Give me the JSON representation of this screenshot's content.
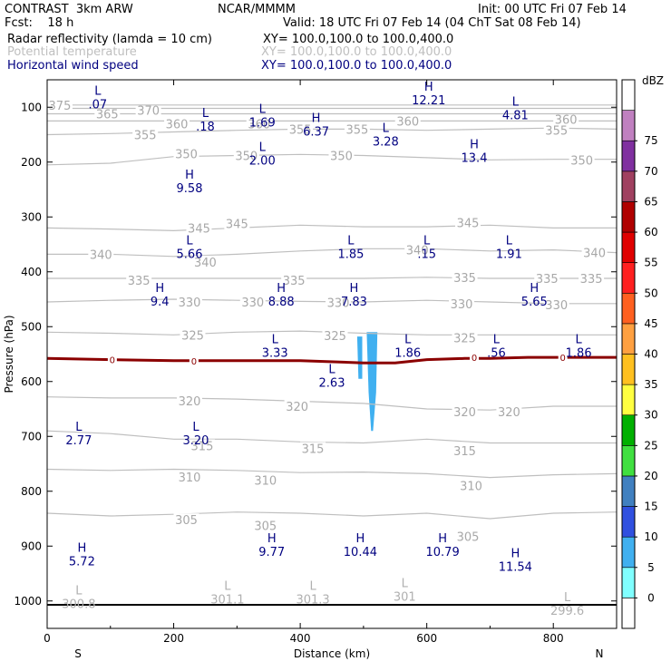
{
  "header": {
    "model": "CONTRAST  3km ARW",
    "org": "NCAR/MMMM",
    "init": "Init: 00 UTC Fri 07 Feb 14",
    "fcst": "Fcst:    18 h",
    "valid": "Valid: 18 UTC Fri 07 Feb 14 (04 ChT Sat 08 Feb 14)",
    "fields": [
      {
        "label": "Radar reflectivity (lamda = 10 cm)",
        "xy": "XY= 100.0,100.0 to 100.0,400.0",
        "color": "#000000"
      },
      {
        "label": "Potential temperature",
        "xy": "XY= 100.0,100.0 to 100.0,400.0",
        "color": "#bfbfbf"
      },
      {
        "label": "Horizontal wind speed",
        "xy": "XY= 100.0,100.0 to 100.0,400.0",
        "color": "#000080"
      }
    ]
  },
  "chart_data": {
    "type": "cross-section",
    "xlabel": "Distance (km)",
    "ylabel": "Pressure (hPa)",
    "xlim": [
      0,
      900
    ],
    "ylim": [
      1050,
      50
    ],
    "xticks": [
      0,
      200,
      400,
      600,
      800
    ],
    "yticks": [
      100,
      200,
      300,
      400,
      500,
      600,
      700,
      800,
      900,
      1000
    ],
    "x_end_labels": {
      "left": "S",
      "right": "N"
    },
    "colorbar": {
      "unit": "dBZ",
      "ticks": [
        0,
        5,
        10,
        15,
        20,
        25,
        30,
        35,
        40,
        45,
        50,
        55,
        60,
        65,
        70,
        75
      ],
      "colors": [
        "#ffffff",
        "#80ffff",
        "#40b0f0",
        "#3050e0",
        "#4080c0",
        "#40e040",
        "#00b000",
        "#ffff40",
        "#ffc020",
        "#ffa040",
        "#ff6020",
        "#ff2020",
        "#e00000",
        "#b00000",
        "#a04060",
        "#8030a0",
        "#c080c0",
        "#ffffff"
      ]
    },
    "theta_contours": [
      {
        "value": 305,
        "points": [
          [
            0,
            840
          ],
          [
            100,
            845
          ],
          [
            200,
            842
          ],
          [
            300,
            838
          ],
          [
            400,
            840
          ],
          [
            500,
            845
          ],
          [
            600,
            840
          ],
          [
            700,
            850
          ],
          [
            800,
            840
          ],
          [
            900,
            838
          ]
        ],
        "labels": [
          [
            220,
            852
          ],
          [
            345,
            862
          ],
          [
            665,
            882
          ]
        ]
      },
      {
        "value": 310,
        "points": [
          [
            0,
            760
          ],
          [
            100,
            762
          ],
          [
            200,
            760
          ],
          [
            300,
            762
          ],
          [
            400,
            766
          ],
          [
            500,
            765
          ],
          [
            600,
            768
          ],
          [
            700,
            775
          ],
          [
            800,
            770
          ],
          [
            900,
            768
          ]
        ],
        "labels": [
          [
            225,
            774
          ],
          [
            345,
            780
          ],
          [
            670,
            790
          ]
        ]
      },
      {
        "value": 315,
        "points": [
          [
            0,
            690
          ],
          [
            100,
            695
          ],
          [
            200,
            705
          ],
          [
            300,
            705
          ],
          [
            400,
            710
          ],
          [
            500,
            712
          ],
          [
            600,
            705
          ],
          [
            700,
            712
          ],
          [
            800,
            712
          ],
          [
            900,
            712
          ]
        ],
        "labels": [
          [
            245,
            717
          ],
          [
            420,
            722
          ],
          [
            660,
            726
          ]
        ]
      },
      {
        "value": 320,
        "points": [
          [
            0,
            628
          ],
          [
            100,
            630
          ],
          [
            200,
            630
          ],
          [
            300,
            632
          ],
          [
            400,
            636
          ],
          [
            500,
            640
          ],
          [
            600,
            650
          ],
          [
            700,
            652
          ],
          [
            800,
            645
          ],
          [
            900,
            645
          ]
        ],
        "labels": [
          [
            225,
            635
          ],
          [
            395,
            645
          ],
          [
            660,
            655
          ],
          [
            730,
            655
          ]
        ]
      },
      {
        "value": 325,
        "points": [
          [
            0,
            510
          ],
          [
            100,
            512
          ],
          [
            200,
            515
          ],
          [
            300,
            510
          ],
          [
            400,
            508
          ],
          [
            500,
            512
          ],
          [
            600,
            515
          ],
          [
            700,
            515
          ],
          [
            800,
            515
          ],
          [
            900,
            515
          ]
        ],
        "labels": [
          [
            230,
            515
          ],
          [
            455,
            516
          ],
          [
            660,
            520
          ]
        ]
      },
      {
        "value": 330,
        "points": [
          [
            0,
            455
          ],
          [
            100,
            452
          ],
          [
            200,
            450
          ],
          [
            300,
            452
          ],
          [
            400,
            454
          ],
          [
            500,
            455
          ],
          [
            600,
            452
          ],
          [
            700,
            455
          ],
          [
            800,
            458
          ],
          [
            900,
            458
          ]
        ],
        "labels": [
          [
            225,
            455
          ],
          [
            325,
            455
          ],
          [
            460,
            456
          ],
          [
            655,
            458
          ],
          [
            805,
            460
          ]
        ]
      },
      {
        "value": 335,
        "points": [
          [
            0,
            412
          ],
          [
            100,
            412
          ],
          [
            200,
            412
          ],
          [
            300,
            412
          ],
          [
            400,
            412
          ],
          [
            500,
            412
          ],
          [
            600,
            410
          ],
          [
            700,
            412
          ],
          [
            800,
            412
          ],
          [
            900,
            412
          ]
        ],
        "labels": [
          [
            145,
            415
          ],
          [
            390,
            415
          ],
          [
            660,
            410
          ],
          [
            790,
            412
          ],
          [
            860,
            412
          ]
        ]
      },
      {
        "value": 340,
        "points": [
          [
            0,
            368
          ],
          [
            100,
            368
          ],
          [
            200,
            372
          ],
          [
            300,
            368
          ],
          [
            400,
            362
          ],
          [
            500,
            358
          ],
          [
            600,
            358
          ],
          [
            700,
            362
          ],
          [
            800,
            360
          ],
          [
            900,
            365
          ]
        ],
        "labels": [
          [
            85,
            368
          ],
          [
            250,
            382
          ],
          [
            585,
            360
          ],
          [
            865,
            365
          ]
        ]
      },
      {
        "value": 345,
        "points": [
          [
            0,
            320
          ],
          [
            100,
            322
          ],
          [
            200,
            325
          ],
          [
            300,
            320
          ],
          [
            400,
            315
          ],
          [
            500,
            318
          ],
          [
            600,
            318
          ],
          [
            700,
            315
          ],
          [
            800,
            320
          ],
          [
            900,
            320
          ]
        ],
        "labels": [
          [
            240,
            320
          ],
          [
            300,
            312
          ],
          [
            665,
            310
          ]
        ]
      },
      {
        "value": 350,
        "points": [
          [
            0,
            205
          ],
          [
            100,
            202
          ],
          [
            200,
            190
          ],
          [
            300,
            188
          ],
          [
            400,
            186
          ],
          [
            500,
            188
          ],
          [
            600,
            192
          ],
          [
            700,
            196
          ],
          [
            800,
            195
          ],
          [
            900,
            195
          ]
        ],
        "labels": [
          [
            220,
            185
          ],
          [
            315,
            188
          ],
          [
            465,
            188
          ],
          [
            845,
            196
          ]
        ]
      },
      {
        "value": 355,
        "points": [
          [
            0,
            150
          ],
          [
            100,
            148
          ],
          [
            200,
            145
          ],
          [
            300,
            142
          ],
          [
            400,
            140
          ],
          [
            500,
            140
          ],
          [
            600,
            142
          ],
          [
            700,
            140
          ],
          [
            800,
            138
          ],
          [
            900,
            140
          ]
        ],
        "labels": [
          [
            155,
            150
          ],
          [
            400,
            140
          ],
          [
            490,
            140
          ],
          [
            805,
            142
          ]
        ]
      },
      {
        "value": 360,
        "points": [
          [
            0,
            125
          ],
          [
            100,
            125
          ],
          [
            200,
            125
          ],
          [
            300,
            125
          ],
          [
            400,
            125
          ],
          [
            500,
            125
          ],
          [
            600,
            125
          ],
          [
            700,
            125
          ],
          [
            800,
            125
          ],
          [
            900,
            125
          ]
        ],
        "labels": [
          [
            205,
            130
          ],
          [
            335,
            130
          ],
          [
            570,
            125
          ],
          [
            820,
            122
          ]
        ]
      },
      {
        "value": 365,
        "points": [
          [
            0,
            112
          ],
          [
            300,
            112
          ],
          [
            600,
            112
          ],
          [
            900,
            112
          ]
        ],
        "labels": [
          [
            95,
            112
          ]
        ]
      },
      {
        "value": 370,
        "points": [
          [
            0,
            102
          ],
          [
            300,
            102
          ],
          [
            600,
            102
          ],
          [
            900,
            102
          ]
        ],
        "labels": [
          [
            160,
            105
          ]
        ]
      },
      {
        "value": 375,
        "points": [
          [
            0,
            96
          ],
          [
            300,
            96
          ],
          [
            600,
            96
          ],
          [
            900,
            96
          ]
        ],
        "labels": [
          [
            20,
            96
          ]
        ]
      }
    ],
    "zero_line": {
      "points": [
        [
          0,
          558
        ],
        [
          100,
          560
        ],
        [
          200,
          562
        ],
        [
          300,
          562
        ],
        [
          400,
          562
        ],
        [
          500,
          566
        ],
        [
          550,
          566
        ],
        [
          600,
          560
        ],
        [
          660,
          558
        ],
        [
          700,
          558
        ],
        [
          760,
          556
        ],
        [
          900,
          556
        ]
      ],
      "labels": [
        [
          103,
          560
        ],
        [
          232,
          562
        ],
        [
          675,
          556
        ],
        [
          815,
          556
        ]
      ],
      "label_text": "0",
      "color": "#8b0000"
    },
    "reflectivity_cells": [
      {
        "dbz": 5,
        "points": [
          [
            490,
            518
          ],
          [
            498,
            518
          ],
          [
            498,
            595
          ],
          [
            492,
            595
          ]
        ]
      },
      {
        "dbz": 5,
        "points": [
          [
            505,
            510
          ],
          [
            522,
            510
          ],
          [
            520,
            620
          ],
          [
            515,
            690
          ],
          [
            512,
            690
          ],
          [
            508,
            620
          ]
        ]
      }
    ],
    "extrema": [
      {
        "kind": "L",
        "x": 80,
        "p": 77,
        "value": ".07"
      },
      {
        "kind": "L",
        "x": 250,
        "p": 118,
        "value": ".18"
      },
      {
        "kind": "L",
        "x": 340,
        "p": 110,
        "value": "1.69"
      },
      {
        "kind": "H",
        "x": 425,
        "p": 127,
        "value": "6.37"
      },
      {
        "kind": "L",
        "x": 535,
        "p": 145,
        "value": "3.28"
      },
      {
        "kind": "H",
        "x": 603,
        "p": 70,
        "value": "12.21"
      },
      {
        "kind": "L",
        "x": 740,
        "p": 97,
        "value": "4.81"
      },
      {
        "kind": "L",
        "x": 340,
        "p": 180,
        "value": "2.00"
      },
      {
        "kind": "H",
        "x": 675,
        "p": 175,
        "value": "13.4"
      },
      {
        "kind": "H",
        "x": 225,
        "p": 230,
        "value": "9.58"
      },
      {
        "kind": "L",
        "x": 225,
        "p": 350,
        "value": "5.66"
      },
      {
        "kind": "L",
        "x": 480,
        "p": 350,
        "value": "1.85"
      },
      {
        "kind": "L",
        "x": 600,
        "p": 350,
        "value": ".15"
      },
      {
        "kind": "L",
        "x": 730,
        "p": 350,
        "value": "1.91"
      },
      {
        "kind": "H",
        "x": 178,
        "p": 437,
        "value": "9.4"
      },
      {
        "kind": "H",
        "x": 370,
        "p": 437,
        "value": "8.88"
      },
      {
        "kind": "H",
        "x": 485,
        "p": 437,
        "value": "7.83"
      },
      {
        "kind": "H",
        "x": 770,
        "p": 437,
        "value": "5.65"
      },
      {
        "kind": "L",
        "x": 360,
        "p": 530,
        "value": "3.33"
      },
      {
        "kind": "L",
        "x": 570,
        "p": 530,
        "value": "1.86"
      },
      {
        "kind": "L",
        "x": 710,
        "p": 530,
        "value": ".56"
      },
      {
        "kind": "L",
        "x": 840,
        "p": 530,
        "value": "1.86"
      },
      {
        "kind": "L",
        "x": 450,
        "p": 585,
        "value": "2.63"
      },
      {
        "kind": "L",
        "x": 50,
        "p": 690,
        "value": "2.77"
      },
      {
        "kind": "L",
        "x": 235,
        "p": 690,
        "value": "3.20"
      },
      {
        "kind": "H",
        "x": 55,
        "p": 910,
        "value": "5.72"
      },
      {
        "kind": "H",
        "x": 355,
        "p": 893,
        "value": "9.77"
      },
      {
        "kind": "H",
        "x": 495,
        "p": 893,
        "value": "10.44"
      },
      {
        "kind": "H",
        "x": 625,
        "p": 893,
        "value": "10.79"
      },
      {
        "kind": "H",
        "x": 740,
        "p": 920,
        "value": "11.54"
      }
    ],
    "theta_extrema": [
      {
        "kind": "L",
        "x": 50,
        "p": 988,
        "value": "300.8"
      },
      {
        "kind": "L",
        "x": 285,
        "p": 980,
        "value": "301.1"
      },
      {
        "kind": "L",
        "x": 420,
        "p": 980,
        "value": "301.3"
      },
      {
        "kind": "L",
        "x": 565,
        "p": 975,
        "value": "301"
      },
      {
        "kind": "L",
        "x": 822,
        "p": 1000,
        "value": "299.6"
      }
    ],
    "ground_pressure": 1007
  }
}
